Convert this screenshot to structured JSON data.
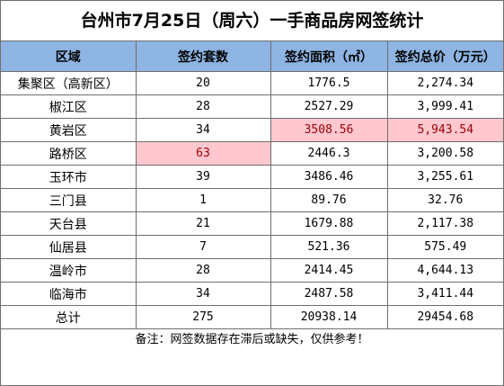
{
  "title": "台州市7月25日（周六）一手商品房网签统计",
  "headers": [
    "区域",
    "签约套数",
    "签约面积（㎡）",
    "签约总价（万元）"
  ],
  "rows": [
    {
      "region": "集聚区（高新区）",
      "units": "20",
      "area": "1776.5",
      "price": "2,274.34"
    },
    {
      "region": "椒江区",
      "units": "28",
      "area": "2527.29",
      "price": "3,999.41"
    },
    {
      "region": "黄岩区",
      "units": "34",
      "area": "3508.56",
      "price": "5,943.54"
    },
    {
      "region": "路桥区",
      "units": "63",
      "area": "2446.3",
      "price": "3,200.58"
    },
    {
      "region": "玉环市",
      "units": "39",
      "area": "3486.46",
      "price": "3,255.61"
    },
    {
      "region": "三门县",
      "units": "1",
      "area": "89.76",
      "price": "32.76"
    },
    {
      "region": "天台县",
      "units": "21",
      "area": "1679.88",
      "price": "2,117.38"
    },
    {
      "region": "仙居县",
      "units": "7",
      "area": "521.36",
      "price": "575.49"
    },
    {
      "region": "温岭市",
      "units": "28",
      "area": "2414.45",
      "price": "4,644.13"
    },
    {
      "region": "临海市",
      "units": "34",
      "area": "2487.58",
      "price": "3,411.44"
    }
  ],
  "total": {
    "label": "总计",
    "units": "275",
    "area": "20938.14",
    "price": "29454.68"
  },
  "note": "备注：网签数据存在滞后或缺失，仅供参考！",
  "colors": {
    "header_bg": "#8db4e2",
    "highlight_bg": "#ffc7ce",
    "highlight_text": "#9c0006"
  }
}
